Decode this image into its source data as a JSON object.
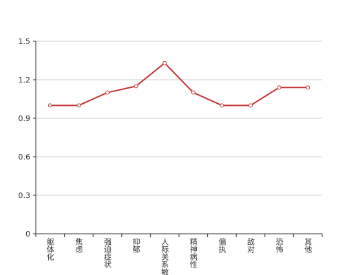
{
  "chart_data": {
    "type": "line",
    "categories": [
      "躯体化",
      "焦虑",
      "强迫症状",
      "抑郁",
      "人际关系敏感",
      "精神病性",
      "偏执",
      "敌对",
      "恐怖",
      "其他"
    ],
    "values": [
      1.0,
      1.0,
      1.1,
      1.15,
      1.33,
      1.1,
      1.0,
      1.0,
      1.14,
      1.14
    ],
    "color": "#c23531",
    "ylim": [
      0,
      1.5
    ],
    "yticks": [
      0,
      0.3,
      0.6,
      0.9,
      1.2,
      1.5
    ],
    "grid": true
  }
}
